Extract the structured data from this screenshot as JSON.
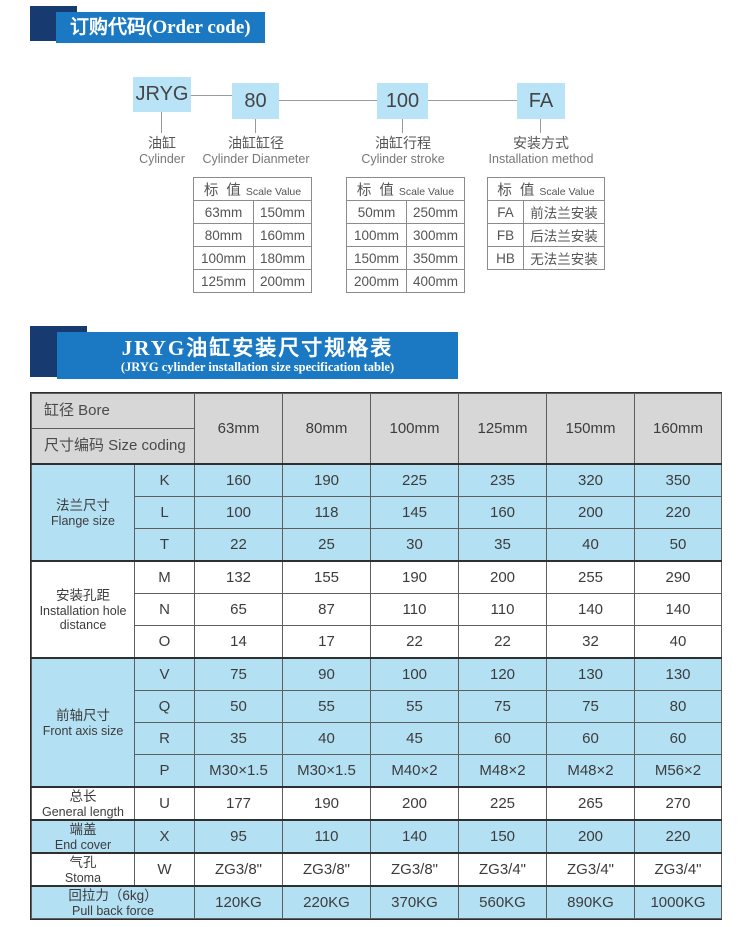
{
  "colors": {
    "banner_blue": "#1b79c3",
    "banner_navy": "#173a70",
    "diagram_box_blue": "#b9e3f7",
    "table_row_blue": "#b4e0f3",
    "table_header_gray": "#d7d7d7",
    "border_dark": "#2f2f2f",
    "text_dark": "#3c3c3c"
  },
  "section1": {
    "title": "订购代码(Order code)",
    "diagram": {
      "boxes": [
        {
          "code": "JRYG",
          "zh": "油缸",
          "en": "Cylinder"
        },
        {
          "code": "80",
          "zh": "油缸缸径",
          "en": "Cylinder Dianmeter"
        },
        {
          "code": "100",
          "zh": "油缸行程",
          "en": "Cylinder stroke"
        },
        {
          "code": "FA",
          "zh": "安装方式",
          "en": "Installation method"
        }
      ]
    },
    "scale_tables": [
      {
        "header_zh": "标 值",
        "header_en": "Scale Value",
        "rows": [
          [
            "63mm",
            "150mm"
          ],
          [
            "80mm",
            "160mm"
          ],
          [
            "100mm",
            "180mm"
          ],
          [
            "125mm",
            "200mm"
          ]
        ]
      },
      {
        "header_zh": "标 值",
        "header_en": "Scale Value",
        "rows": [
          [
            "50mm",
            "250mm"
          ],
          [
            "100mm",
            "300mm"
          ],
          [
            "150mm",
            "350mm"
          ],
          [
            "200mm",
            "400mm"
          ]
        ]
      },
      {
        "header_zh": "标 值",
        "header_en": "Scale Value",
        "rows": [
          [
            "FA",
            "前法兰安装"
          ],
          [
            "FB",
            "后法兰安装"
          ],
          [
            "HB",
            "无法兰安装"
          ]
        ]
      }
    ]
  },
  "section2": {
    "title_zh": "JRYG油缸安装尺寸规格表",
    "title_en": "(JRYG cylinder installation size specification table)",
    "spec_table": {
      "corner_top": "缸径   Bore",
      "corner_bottom": "尺寸编码  Size coding",
      "columns": [
        "63mm",
        "80mm",
        "100mm",
        "125mm",
        "150mm",
        "160mm"
      ],
      "groups": [
        {
          "zh": "法兰尺寸",
          "en": "Flange size",
          "bg": "blue",
          "rows": [
            {
              "code": "K",
              "values": [
                "160",
                "190",
                "225",
                "235",
                "320",
                "350"
              ]
            },
            {
              "code": "L",
              "values": [
                "100",
                "118",
                "145",
                "160",
                "200",
                "220"
              ]
            },
            {
              "code": "T",
              "values": [
                "22",
                "25",
                "30",
                "35",
                "40",
                "50"
              ]
            }
          ]
        },
        {
          "zh": "安装孔距",
          "en": "Installation hole distance",
          "bg": "white",
          "rows": [
            {
              "code": "M",
              "values": [
                "132",
                "155",
                "190",
                "200",
                "255",
                "290"
              ]
            },
            {
              "code": "N",
              "values": [
                "65",
                "87",
                "110",
                "110",
                "140",
                "140"
              ]
            },
            {
              "code": "O",
              "values": [
                "14",
                "17",
                "22",
                "22",
                "32",
                "40"
              ]
            }
          ]
        },
        {
          "zh": "前轴尺寸",
          "en": "Front axis size",
          "bg": "blue",
          "rows": [
            {
              "code": "V",
              "values": [
                "75",
                "90",
                "100",
                "120",
                "130",
                "130"
              ]
            },
            {
              "code": "Q",
              "values": [
                "50",
                "55",
                "55",
                "75",
                "75",
                "80"
              ]
            },
            {
              "code": "R",
              "values": [
                "35",
                "40",
                "45",
                "60",
                "60",
                "60"
              ]
            },
            {
              "code": "P",
              "values": [
                "M30×1.5",
                "M30×1.5",
                "M40×2",
                "M48×2",
                "M48×2",
                "M56×2"
              ]
            }
          ]
        },
        {
          "zh": "总长",
          "en": "General length",
          "bg": "white",
          "rows": [
            {
              "code": "U",
              "values": [
                "177",
                "190",
                "200",
                "225",
                "265",
                "270"
              ]
            }
          ]
        },
        {
          "zh": "端盖",
          "en": "End cover",
          "bg": "blue",
          "rows": [
            {
              "code": "X",
              "values": [
                "95",
                "110",
                "140",
                "150",
                "200",
                "220"
              ]
            }
          ]
        },
        {
          "zh": "气孔",
          "en": "Stoma",
          "bg": "white",
          "rows": [
            {
              "code": "W",
              "values": [
                "ZG3/8\"",
                "ZG3/8\"",
                "ZG3/8\"",
                "ZG3/4\"",
                "ZG3/4\"",
                "ZG3/4\""
              ]
            }
          ]
        },
        {
          "zh": "回拉力（6kg）",
          "en": "Pull back force",
          "bg": "blue",
          "label_colspan": 2,
          "rows": [
            {
              "code": "",
              "values": [
                "120KG",
                "220KG",
                "370KG",
                "560KG",
                "890KG",
                "1000KG"
              ]
            }
          ]
        }
      ]
    }
  }
}
